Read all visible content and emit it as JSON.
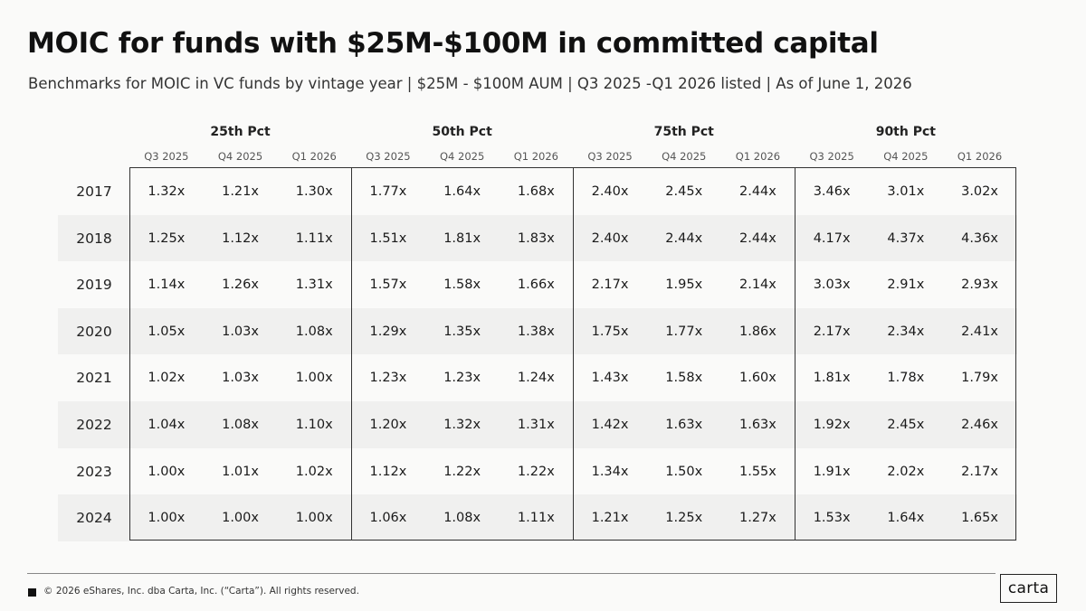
{
  "title": "MOIC for funds with $25M-$100M in committed capital",
  "subtitle": "Benchmarks for MOIC in VC funds by vintage year | $25M - $100M AUM | Q3 2025 -Q1 2026 listed | As of June 1, 2026",
  "footer": {
    "copyright": "© 2026 eShares, Inc. dba Carta, Inc. (“Carta”). All rights reserved.",
    "logo_text": "carta"
  },
  "colors": {
    "background": "#fafaf9",
    "band": "#f0f0ef",
    "border": "#333333",
    "text": "#1a1a1a"
  },
  "chart_data": {
    "type": "table",
    "title": "MOIC for funds with $25M-$100M in committed capital",
    "groups": [
      "25th Pct",
      "50th Pct",
      "75th Pct",
      "90th Pct"
    ],
    "quarters": [
      "Q3 2025",
      "Q4 2025",
      "Q1 2026"
    ],
    "rows": [
      {
        "year": "2017",
        "values": [
          "1.32x",
          "1.21x",
          "1.30x",
          "1.77x",
          "1.64x",
          "1.68x",
          "2.40x",
          "2.45x",
          "2.44x",
          "3.46x",
          "3.01x",
          "3.02x"
        ]
      },
      {
        "year": "2018",
        "values": [
          "1.25x",
          "1.12x",
          "1.11x",
          "1.51x",
          "1.81x",
          "1.83x",
          "2.40x",
          "2.44x",
          "2.44x",
          "4.17x",
          "4.37x",
          "4.36x"
        ]
      },
      {
        "year": "2019",
        "values": [
          "1.14x",
          "1.26x",
          "1.31x",
          "1.57x",
          "1.58x",
          "1.66x",
          "2.17x",
          "1.95x",
          "2.14x",
          "3.03x",
          "2.91x",
          "2.93x"
        ]
      },
      {
        "year": "2020",
        "values": [
          "1.05x",
          "1.03x",
          "1.08x",
          "1.29x",
          "1.35x",
          "1.38x",
          "1.75x",
          "1.77x",
          "1.86x",
          "2.17x",
          "2.34x",
          "2.41x"
        ]
      },
      {
        "year": "2021",
        "values": [
          "1.02x",
          "1.03x",
          "1.00x",
          "1.23x",
          "1.23x",
          "1.24x",
          "1.43x",
          "1.58x",
          "1.60x",
          "1.81x",
          "1.78x",
          "1.79x"
        ]
      },
      {
        "year": "2022",
        "values": [
          "1.04x",
          "1.08x",
          "1.10x",
          "1.20x",
          "1.32x",
          "1.31x",
          "1.42x",
          "1.63x",
          "1.63x",
          "1.92x",
          "2.45x",
          "2.46x"
        ]
      },
      {
        "year": "2023",
        "values": [
          "1.00x",
          "1.01x",
          "1.02x",
          "1.12x",
          "1.22x",
          "1.22x",
          "1.34x",
          "1.50x",
          "1.55x",
          "1.91x",
          "2.02x",
          "2.17x"
        ]
      },
      {
        "year": "2024",
        "values": [
          "1.00x",
          "1.00x",
          "1.00x",
          "1.06x",
          "1.08x",
          "1.11x",
          "1.21x",
          "1.25x",
          "1.27x",
          "1.53x",
          "1.64x",
          "1.65x"
        ]
      }
    ]
  }
}
